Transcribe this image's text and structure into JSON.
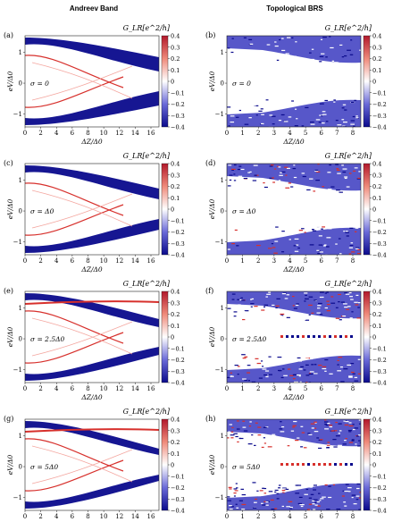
{
  "columns": [
    "Andreev Band",
    "Topological BRS"
  ],
  "colorbar": {
    "label": "G_LR[e^2/h]",
    "ticks": [
      "0.4",
      "0.3",
      "0.2",
      "0.1",
      "0",
      "−0.1",
      "−0.2",
      "−0.3",
      "−0.4"
    ],
    "colors": {
      "max": "#b2182b",
      "zero": "#ffffff",
      "min": "#0a0a8c"
    }
  },
  "axes": {
    "ylabel": "eV/Δ0",
    "xlabel": "ΔZ/Δ0",
    "yticks": [
      "1",
      "0",
      "−1"
    ],
    "left_xticks": [
      "0",
      "2",
      "4",
      "6",
      "8",
      "10",
      "12",
      "14",
      "16"
    ],
    "right_xticks": [
      "0",
      "1",
      "2",
      "3",
      "4",
      "5",
      "6",
      "7",
      "8"
    ]
  },
  "panels": [
    {
      "letter": "(a)",
      "sigma": "σ = 0",
      "column": "Andreev Band"
    },
    {
      "letter": "(b)",
      "sigma": "σ = 0",
      "column": "Topological BRS"
    },
    {
      "letter": "(c)",
      "sigma": "σ = Δ0",
      "column": "Andreev Band"
    },
    {
      "letter": "(d)",
      "sigma": "σ = Δ0",
      "column": "Topological BRS"
    },
    {
      "letter": "(e)",
      "sigma": "σ = 2.5Δ0",
      "column": "Andreev Band"
    },
    {
      "letter": "(f)",
      "sigma": "σ = 2.5Δ0",
      "column": "Topological BRS"
    },
    {
      "letter": "(g)",
      "sigma": "σ = 5Δ0",
      "column": "Andreev Band"
    },
    {
      "letter": "(h)",
      "sigma": "σ = 5Δ0",
      "column": "Topological BRS"
    }
  ]
}
